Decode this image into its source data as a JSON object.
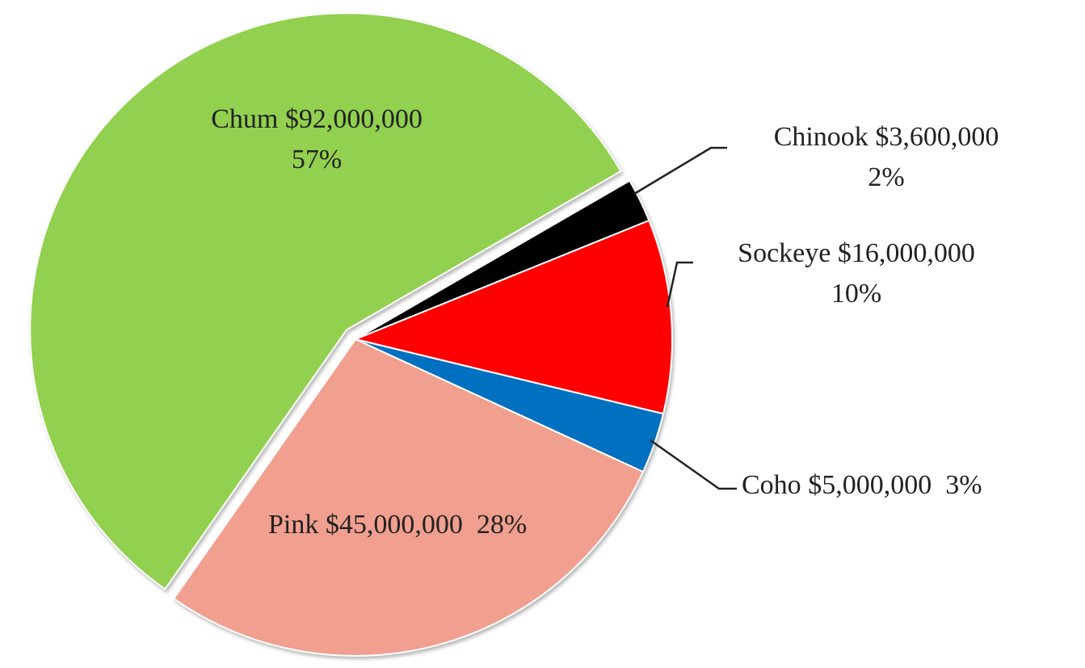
{
  "chart_data": {
    "type": "pie",
    "categories": [
      "Chum",
      "Chinook",
      "Sockeye",
      "Coho",
      "Pink"
    ],
    "values": [
      92000000,
      3600000,
      16000000,
      5000000,
      45000000
    ],
    "value_labels": [
      "$92,000,000",
      "$3,600,000",
      "$16,000,000",
      "$5,000,000",
      "$45,000,000"
    ],
    "percent_labels": [
      "57%",
      "2%",
      "10%",
      "3%",
      "28%"
    ],
    "colors": [
      "#92d050",
      "#000000",
      "#ff0000",
      "#0070c0",
      "#f19f8f"
    ]
  }
}
